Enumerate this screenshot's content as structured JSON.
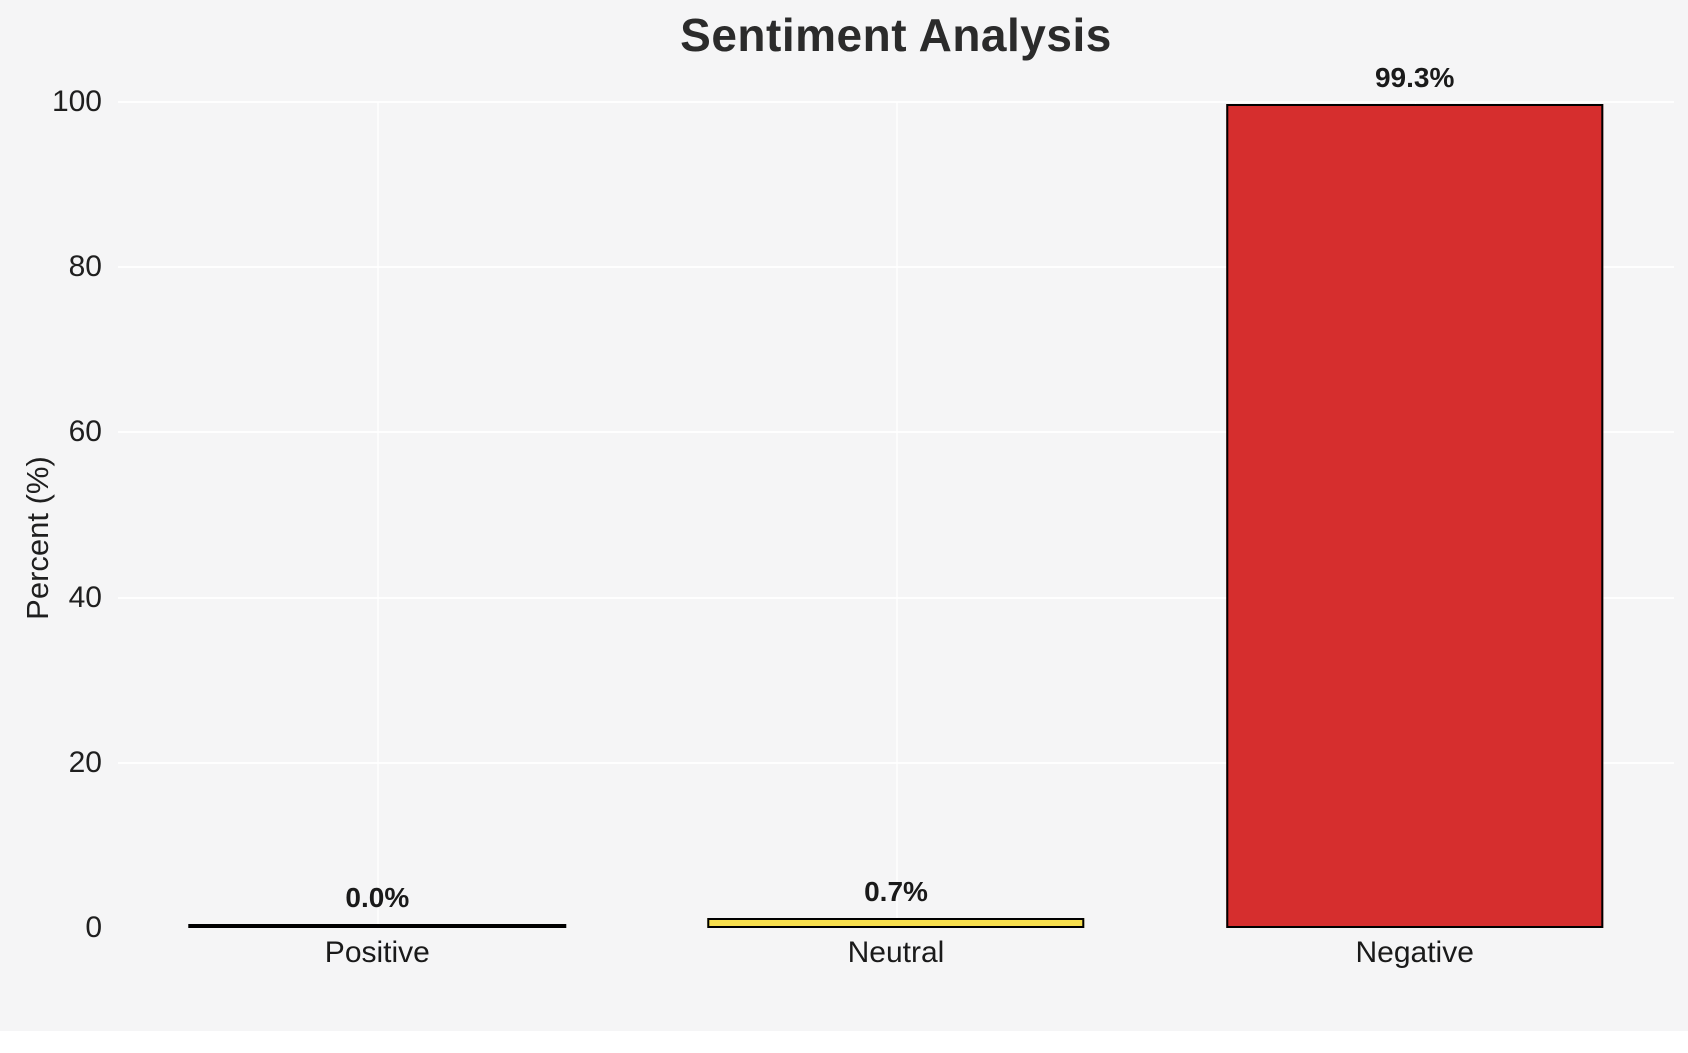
{
  "chart_data": {
    "type": "bar",
    "title": "Sentiment Analysis",
    "xlabel": "",
    "ylabel": "Percent (%)",
    "categories": [
      "Positive",
      "Neutral",
      "Negative"
    ],
    "values": [
      0.0,
      0.7,
      99.3
    ],
    "value_labels": [
      "0.0%",
      "0.7%",
      "99.3%"
    ],
    "bar_colors": [
      "#f5f5f6",
      "#f7df4e",
      "#d62e2e"
    ],
    "bar_edge_color": "#000000",
    "ylim": [
      0,
      100
    ],
    "yticks": [
      0,
      20,
      40,
      60,
      80,
      100
    ],
    "grid": true,
    "legend": "none",
    "background_color": "#f5f5f6"
  }
}
